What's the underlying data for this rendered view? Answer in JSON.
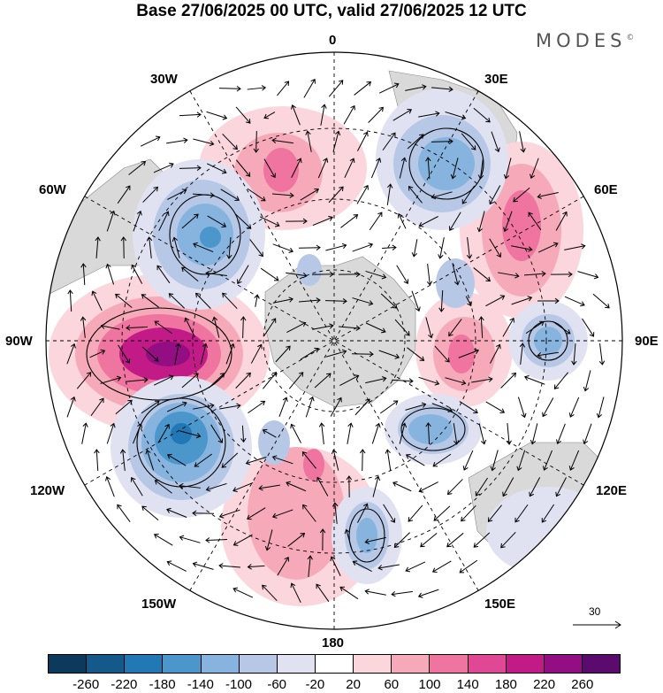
{
  "title": "Base 27/06/2025 00 UTC, valid 27/06/2025 12 UTC",
  "brand": "MODES",
  "brand_mark": "©",
  "longitude_labels": {
    "lon_0": "0",
    "lon_30e": "30E",
    "lon_60e": "60E",
    "lon_90e": "90E",
    "lon_120e": "120E",
    "lon_150e": "150E",
    "lon_180": "180",
    "lon_150w": "150W",
    "lon_120w": "120W",
    "lon_90w": "90W",
    "lon_60w": "60W",
    "lon_30w": "30W"
  },
  "reference_vector": {
    "value": "30"
  },
  "colorbar": {
    "colors": [
      "#0c3a5c",
      "#14598a",
      "#2178b4",
      "#4b97cc",
      "#86b4de",
      "#b7c8e6",
      "#e0e2f2",
      "#ffffff",
      "#fbd6dc",
      "#f6aab9",
      "#ef74a0",
      "#e04795",
      "#c21b87",
      "#930e82",
      "#5b0a6e"
    ],
    "ticks": [
      "-260",
      "-220",
      "-180",
      "-140",
      "-100",
      "-60",
      "-20",
      "20",
      "60",
      "100",
      "140",
      "180",
      "220",
      "260"
    ]
  },
  "map_colors": {
    "land": "#d9d9d9",
    "pos_light": "#fbd6dc",
    "pos_mid": "#f6aab9",
    "pos_strong": "#ef74a0",
    "pos_very": "#c21b87",
    "pos_max": "#930e82",
    "neg_light": "#e0e2f2",
    "neg_mid": "#b7c8e6",
    "neg_strong": "#86b4de",
    "neg_very": "#4b97cc",
    "neg_max": "#2178b4"
  }
}
